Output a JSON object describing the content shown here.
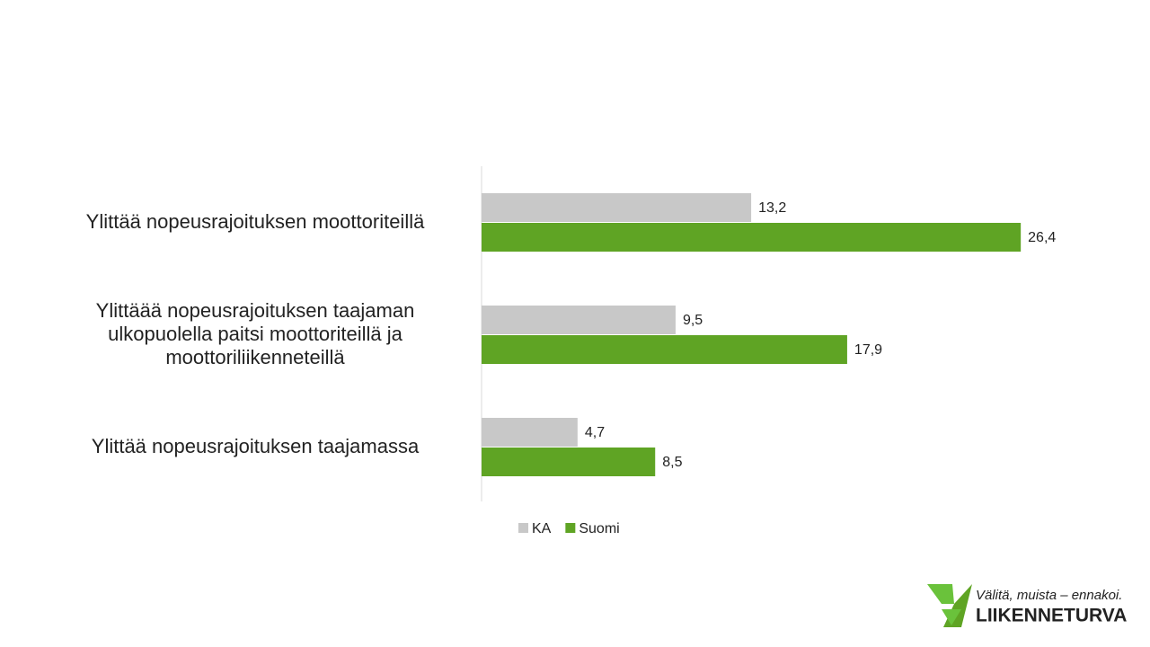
{
  "chart_data": {
    "type": "bar",
    "orientation": "horizontal",
    "categories": [
      "Ylittää nopeusrajoituksen moottoriteillä",
      "Ylittäää nopeusrajoituksen taajaman ulkopuolella paitsi moottoriteillä ja moottoriliikenneteillä",
      "Ylittää nopeusrajoituksen taajamassa"
    ],
    "series": [
      {
        "name": "KA",
        "color": "#c8c8c8",
        "values": [
          13.2,
          9.5,
          4.7
        ],
        "value_labels": [
          "13,2",
          "9,5",
          "4,7"
        ]
      },
      {
        "name": "Suomi",
        "color": "#5fa424",
        "values": [
          26.4,
          17.9,
          8.5
        ],
        "value_labels": [
          "26,4",
          "17,9",
          "8,5"
        ]
      }
    ],
    "xlim": [
      0,
      30
    ],
    "grid": false,
    "legend": "bottom"
  },
  "logo": {
    "tagline": "Välitä, muista – ennakoi.",
    "name": "LIIKENNETURVA"
  }
}
